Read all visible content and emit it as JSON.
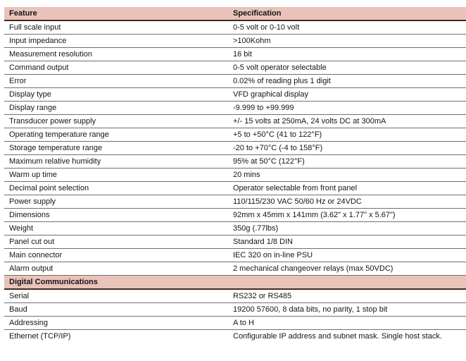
{
  "table": {
    "columns": [
      "Feature",
      "Specification"
    ],
    "colors": {
      "header_bg": "#e9c3ba",
      "dark_rule": "#3c2d23",
      "row_rule": "#707070",
      "text": "#151515",
      "page_bg": "#ffffff"
    },
    "sections": [
      {
        "header": null,
        "rows": [
          [
            "Full scale input",
            "0-5 volt or 0-10 volt"
          ],
          [
            "Input impedance",
            ">100Kohm"
          ],
          [
            "Measurement resolution",
            "16 bit"
          ],
          [
            "Command output",
            "0-5 volt operator selectable"
          ],
          [
            "Error",
            "0.02% of reading plus 1 digit"
          ],
          [
            "Display type",
            "VFD graphical display"
          ],
          [
            "Display range",
            "-9.999 to +99.999"
          ],
          [
            "Transducer power supply",
            "+/- 15 volts at 250mA, 24 volts DC at 300mA"
          ],
          [
            "Operating temperature range",
            "+5 to +50°C (41 to 122°F)"
          ],
          [
            "Storage temperature range",
            "-20 to +70°C (-4 to 158°F)"
          ],
          [
            "Maximum relative humidity",
            "95% at 50°C (122°F)"
          ],
          [
            "Warm up time",
            "20 mins"
          ],
          [
            "Decimal point selection",
            "Operator selectable from front panel"
          ],
          [
            "Power supply",
            "110/115/230 VAC 50/60 Hz or 24VDC"
          ],
          [
            "Dimensions",
            "92mm x 45mm x 141mm (3.62\" x 1.77\" x 5.67\")"
          ],
          [
            "Weight",
            "350g (.77lbs)"
          ],
          [
            "Panel cut out",
            "Standard 1/8 DIN"
          ],
          [
            "Main connector",
            "IEC 320 on in-line PSU"
          ],
          [
            "Alarm output",
            "2 mechanical changeover relays (max 50VDC)"
          ]
        ]
      },
      {
        "header": "Digital Communications",
        "rows": [
          [
            "Serial",
            "RS232 or RS485"
          ],
          [
            "Baud",
            "19200 57600, 8 data bits, no parity, 1 stop bit"
          ],
          [
            "Addressing",
            "A to H"
          ],
          [
            "Ethernet (TCP/IP)",
            "Configurable IP address and subnet mask.  Single host stack."
          ]
        ]
      }
    ]
  }
}
